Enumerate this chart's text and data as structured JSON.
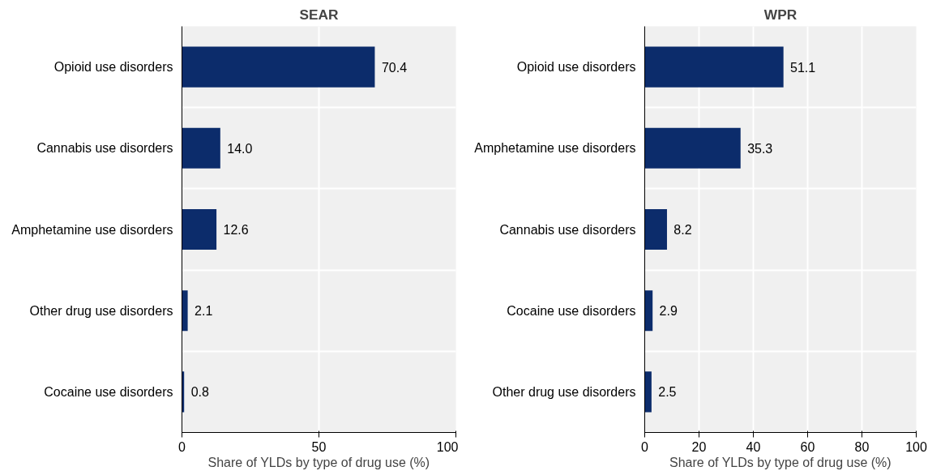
{
  "chart_data": [
    {
      "type": "bar",
      "orientation": "horizontal",
      "title": "SEAR",
      "xlabel": "Share of YLDs by type of drug use (%)",
      "categories": [
        "Opioid use disorders",
        "Cannabis use disorders",
        "Amphetamine use disorders",
        "Other drug use disorders",
        "Cocaine use disorders"
      ],
      "values": [
        70.4,
        14.0,
        12.6,
        2.1,
        0.8
      ],
      "color": "#0c2c6b",
      "xlim": [
        0,
        100
      ],
      "xticks": [
        0,
        50,
        100
      ],
      "data_labels": true,
      "grid": true,
      "value_labels": [
        "70.4",
        "14.0",
        "12.6",
        "2.1",
        "0.8"
      ]
    },
    {
      "type": "bar",
      "orientation": "horizontal",
      "title": "WPR",
      "xlabel": "Share of YLDs by type of drug use (%)",
      "categories": [
        "Opioid use disorders",
        "Amphetamine use disorders",
        "Cannabis use disorders",
        "Cocaine use disorders",
        "Other drug use disorders"
      ],
      "values": [
        51.1,
        35.3,
        8.2,
        2.9,
        2.5
      ],
      "color": "#0c2c6b",
      "xlim": [
        0,
        100
      ],
      "xticks": [
        0,
        20,
        40,
        60,
        80,
        100
      ],
      "data_labels": true,
      "grid": true,
      "value_labels": [
        "51.1",
        "35.3",
        "8.2",
        "2.9",
        "2.5"
      ]
    }
  ]
}
